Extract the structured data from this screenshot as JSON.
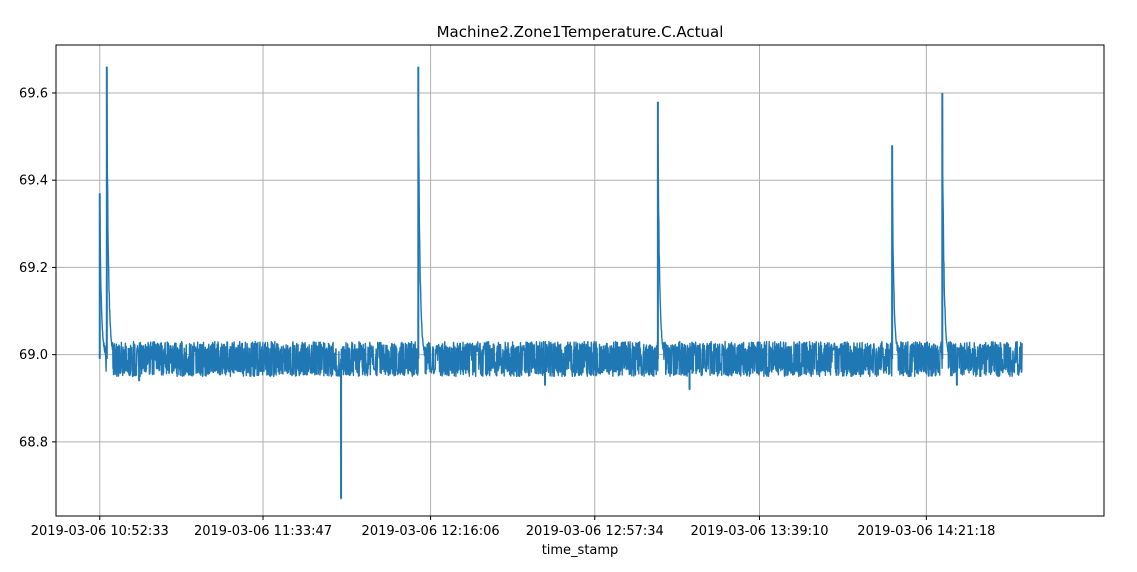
{
  "chart_data": {
    "type": "line",
    "title": "Machine2.Zone1Temperature.C.Actual",
    "xlabel": "time_stamp",
    "ylabel": "",
    "x_ticks": [
      "2019-03-06 10:52:33",
      "2019-03-06 11:33:47",
      "2019-03-06 12:16:06",
      "2019-03-06 12:57:34",
      "2019-03-06 13:39:10",
      "2019-03-06 14:21:18"
    ],
    "xlim": [
      "2019-03-06 10:41:30",
      "2019-03-06 15:06:10"
    ],
    "x_range": [
      "2019-03-06 10:52:33",
      "2019-03-06 14:45:30"
    ],
    "y_ticks": [
      "68.8",
      "69.0",
      "69.2",
      "69.4",
      "69.6"
    ],
    "ylim": [
      68.63,
      69.71
    ],
    "grid": true,
    "line_color": "#1f77b4",
    "baseline": 68.99,
    "noise_range": [
      68.95,
      69.03
    ],
    "series": [
      {
        "name": "",
        "spikes": [
          {
            "time": "2019-03-06 10:52:33",
            "value": 69.37
          },
          {
            "time": "2019-03-06 10:54:20",
            "value": 69.66
          },
          {
            "time": "2019-03-06 12:13:00",
            "value": 69.66
          },
          {
            "time": "2019-03-06 13:13:30",
            "value": 69.58
          },
          {
            "time": "2019-03-06 14:12:40",
            "value": 69.48
          },
          {
            "time": "2019-03-06 14:25:20",
            "value": 69.6
          }
        ],
        "dips": [
          {
            "time": "2019-03-06 11:53:30",
            "value": 68.67
          },
          {
            "time": "2019-03-06 13:21:30",
            "value": 68.92
          },
          {
            "time": "2019-03-06 14:29:00",
            "value": 68.93
          },
          {
            "time": "2019-03-06 11:02:30",
            "value": 68.94
          },
          {
            "time": "2019-03-06 12:45:00",
            "value": 68.93
          }
        ]
      }
    ]
  }
}
